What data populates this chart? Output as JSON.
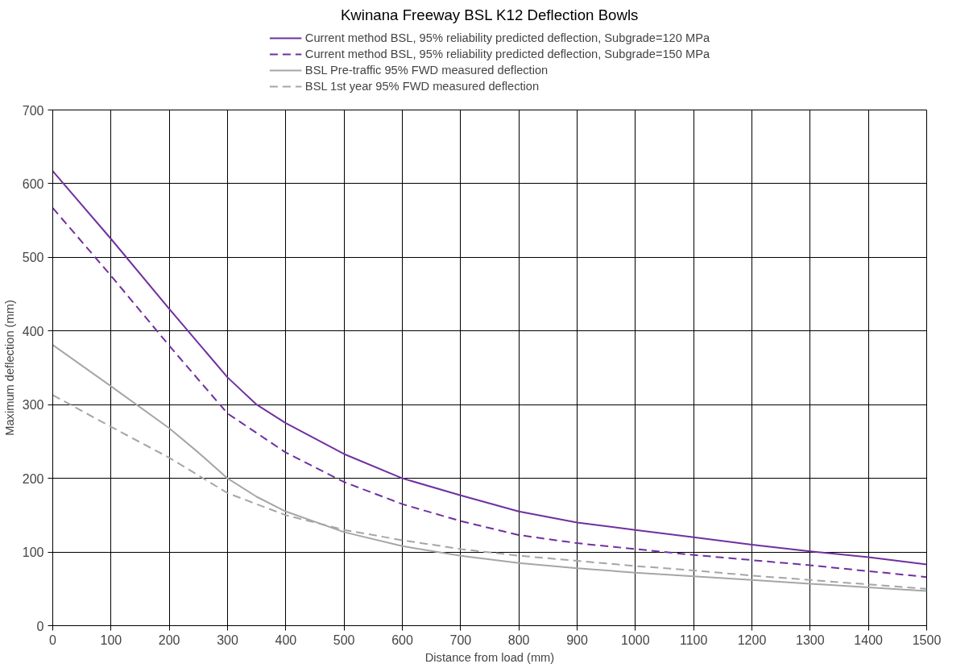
{
  "chart_data": {
    "type": "line",
    "title": "Kwinana Freeway BSL K12 Deflection Bowls",
    "xlabel": "Distance from load (mm)",
    "ylabel": "Maximum deflection (mm)",
    "xlim": [
      0,
      1500
    ],
    "ylim": [
      0,
      700
    ],
    "xticks": [
      0,
      100,
      200,
      300,
      400,
      500,
      600,
      700,
      800,
      900,
      1000,
      1100,
      1200,
      1300,
      1400,
      1500
    ],
    "yticks": [
      0,
      100,
      200,
      300,
      400,
      500,
      600,
      700
    ],
    "grid": true,
    "legend": "top",
    "series": [
      {
        "name": "Current method BSL, 95% reliability predicted deflection, Subgrade=120 MPa",
        "color": "#7030a0",
        "line_style": "solid",
        "x": [
          0,
          100,
          200,
          300,
          350,
          400,
          500,
          600,
          700,
          800,
          900,
          1000,
          1100,
          1200,
          1300,
          1400,
          1500
        ],
        "values": [
          617,
          525,
          430,
          337,
          300,
          275,
          233,
          200,
          177,
          155,
          140,
          130,
          120,
          110,
          101,
          93,
          83
        ]
      },
      {
        "name": "Current method BSL, 95% reliability predicted deflection, Subgrade=150 MPa",
        "color": "#7030a0",
        "line_style": "dashed",
        "x": [
          0,
          100,
          200,
          300,
          400,
          500,
          600,
          700,
          800,
          900,
          1000,
          1100,
          1200,
          1300,
          1400,
          1500
        ],
        "values": [
          567,
          475,
          380,
          288,
          235,
          195,
          165,
          142,
          123,
          112,
          104,
          96,
          89,
          82,
          74,
          66
        ]
      },
      {
        "name": "BSL Pre-traffic 95% FWD measured deflection",
        "color": "#a6a6a6",
        "line_style": "solid",
        "x": [
          0,
          100,
          200,
          250,
          300,
          350,
          400,
          500,
          600,
          700,
          800,
          900,
          1000,
          1100,
          1200,
          1300,
          1400,
          1500
        ],
        "values": [
          381,
          325,
          268,
          235,
          200,
          175,
          155,
          127,
          108,
          95,
          85,
          78,
          72,
          67,
          62,
          57,
          52,
          47
        ]
      },
      {
        "name": "BSL 1st year 95% FWD measured deflection",
        "color": "#a6a6a6",
        "line_style": "dashed",
        "x": [
          0,
          100,
          200,
          300,
          400,
          500,
          600,
          700,
          800,
          900,
          1000,
          1100,
          1200,
          1300,
          1400,
          1500
        ],
        "values": [
          313,
          270,
          228,
          180,
          150,
          130,
          116,
          104,
          95,
          88,
          81,
          75,
          68,
          62,
          56,
          50
        ]
      }
    ]
  }
}
